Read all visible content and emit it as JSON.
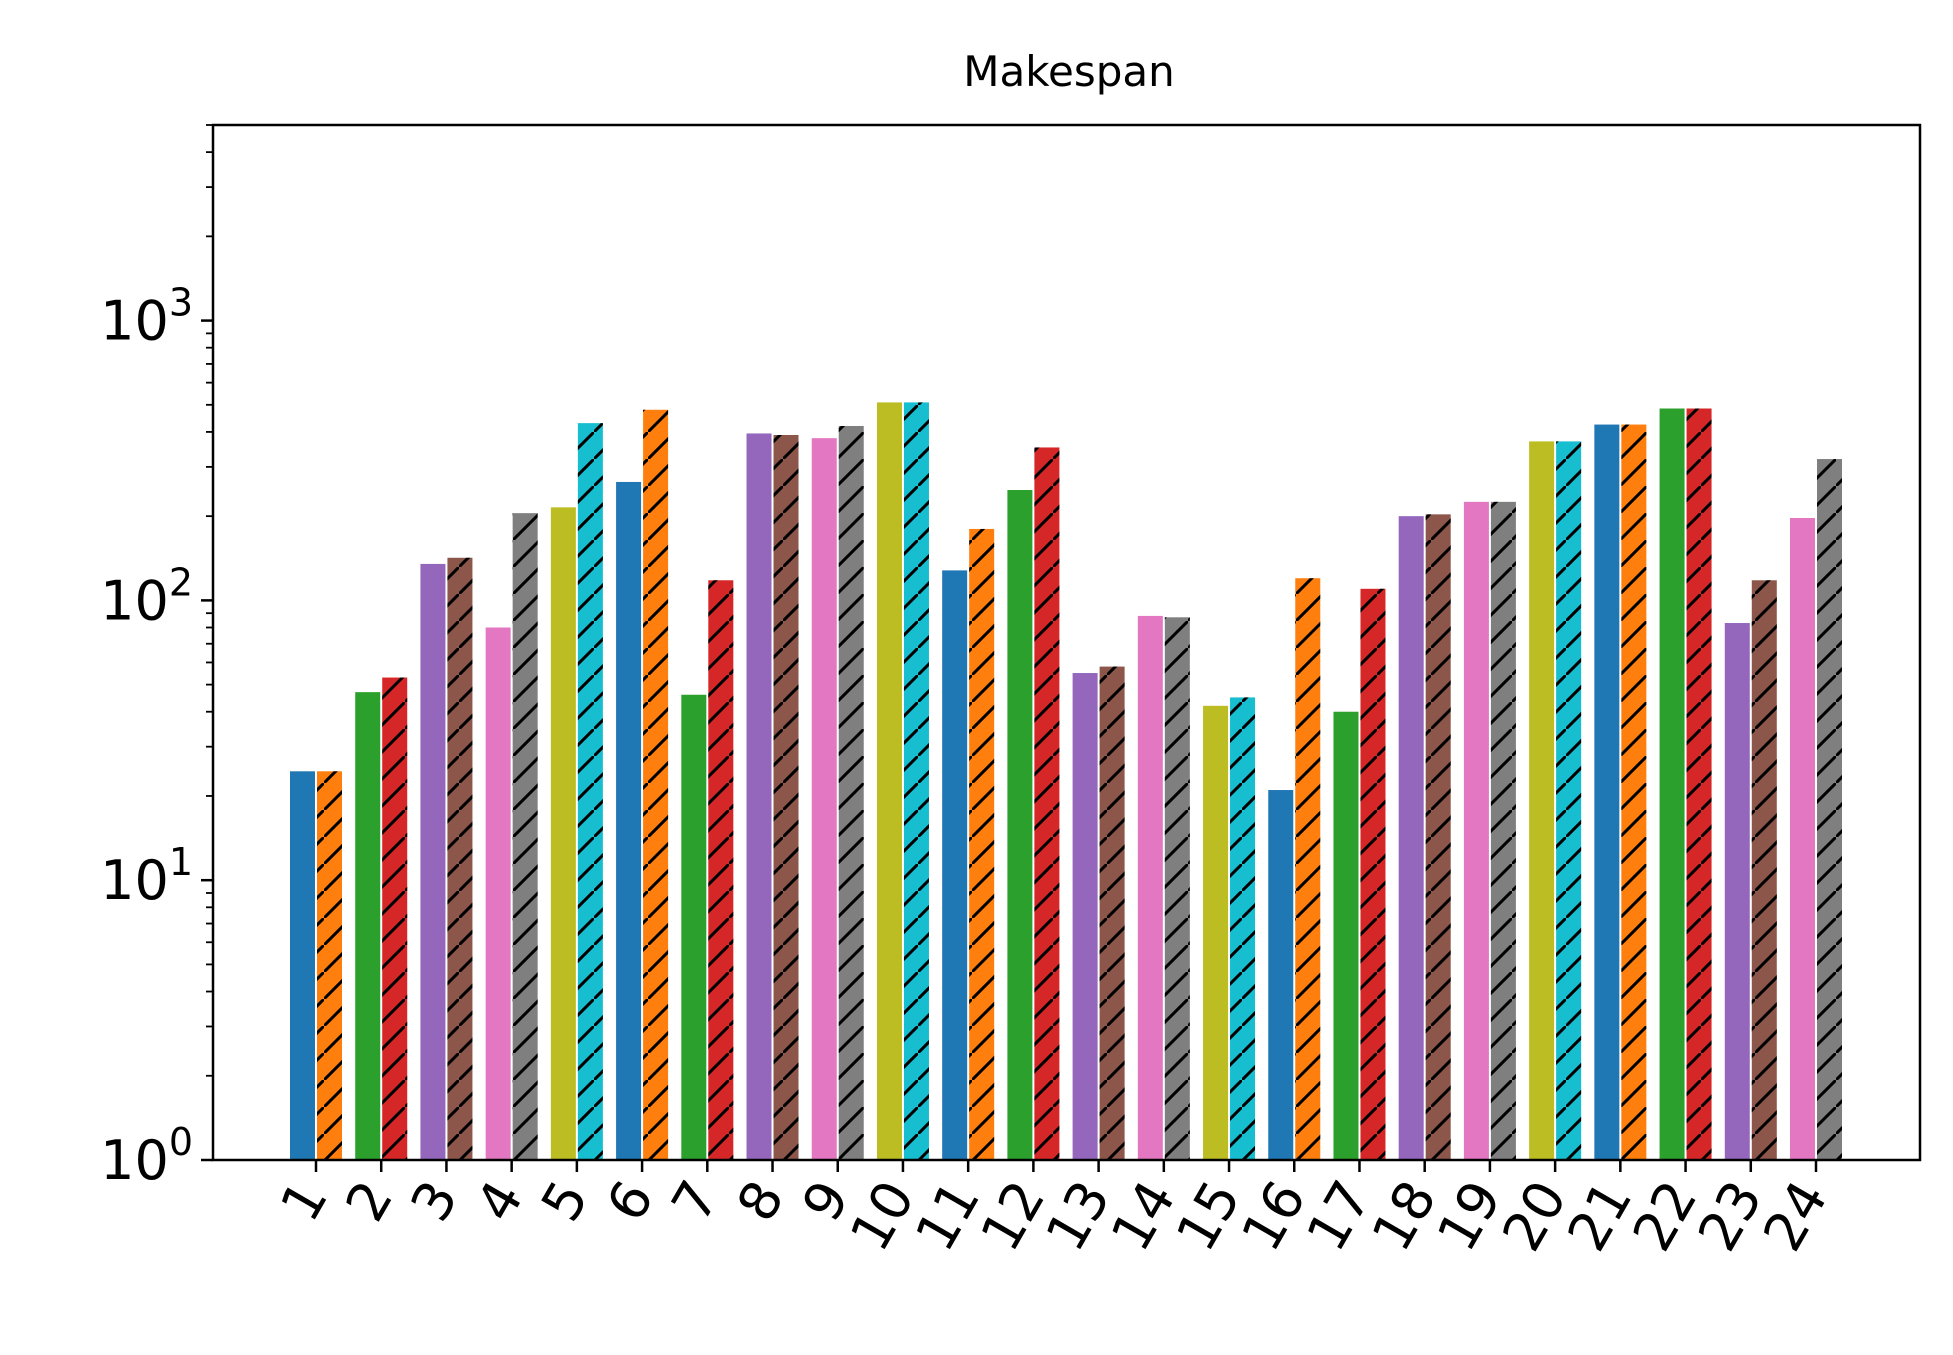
{
  "chart_data": {
    "type": "bar",
    "title": "Makespan",
    "xlabel": "",
    "ylabel": "",
    "yscale": "log",
    "ylim": [
      1,
      5000
    ],
    "y_ticks": [
      {
        "value": 1,
        "base": "10",
        "exp": "0"
      },
      {
        "value": 10,
        "base": "10",
        "exp": "1"
      },
      {
        "value": 100,
        "base": "10",
        "exp": "2"
      },
      {
        "value": 1000,
        "base": "10",
        "exp": "3"
      }
    ],
    "grid": false,
    "legend": "none",
    "categories": [
      "1",
      "2",
      "3",
      "4",
      "5",
      "6",
      "7",
      "8",
      "9",
      "10",
      "11",
      "12",
      "13",
      "14",
      "15",
      "16",
      "17",
      "18",
      "19",
      "20",
      "21",
      "22",
      "23",
      "24"
    ],
    "series": [
      {
        "hatched": false,
        "values": [
          24.5,
          47,
          135,
          80,
          215,
          265,
          46,
          395,
          380,
          510,
          128,
          248,
          55,
          88,
          42,
          21,
          40,
          200,
          225,
          370,
          425,
          485,
          83,
          197
        ]
      },
      {
        "hatched": true,
        "values": [
          24.5,
          53,
          142,
          205,
          430,
          480,
          118,
          390,
          420,
          510,
          180,
          352,
          58,
          87,
          45,
          120,
          110,
          203,
          225,
          370,
          425,
          485,
          118,
          320
        ]
      }
    ],
    "bar_colors": [
      [
        "#1f77b4",
        "#ff7f0e"
      ],
      [
        "#2ca02c",
        "#d62728"
      ],
      [
        "#9467bd",
        "#8c564b"
      ],
      [
        "#e377c2",
        "#7f7f7f"
      ],
      [
        "#bcbd22",
        "#17becf"
      ],
      [
        "#1f77b4",
        "#ff7f0e"
      ],
      [
        "#2ca02c",
        "#d62728"
      ],
      [
        "#9467bd",
        "#8c564b"
      ],
      [
        "#e377c2",
        "#7f7f7f"
      ],
      [
        "#bcbd22",
        "#17becf"
      ],
      [
        "#1f77b4",
        "#ff7f0e"
      ],
      [
        "#2ca02c",
        "#d62728"
      ],
      [
        "#9467bd",
        "#8c564b"
      ],
      [
        "#e377c2",
        "#7f7f7f"
      ],
      [
        "#bcbd22",
        "#17becf"
      ],
      [
        "#1f77b4",
        "#ff7f0e"
      ],
      [
        "#2ca02c",
        "#d62728"
      ],
      [
        "#9467bd",
        "#8c564b"
      ],
      [
        "#e377c2",
        "#7f7f7f"
      ],
      [
        "#bcbd22",
        "#17becf"
      ],
      [
        "#1f77b4",
        "#ff7f0e"
      ],
      [
        "#2ca02c",
        "#d62728"
      ],
      [
        "#9467bd",
        "#8c564b"
      ],
      [
        "#e377c2",
        "#7f7f7f"
      ]
    ]
  }
}
